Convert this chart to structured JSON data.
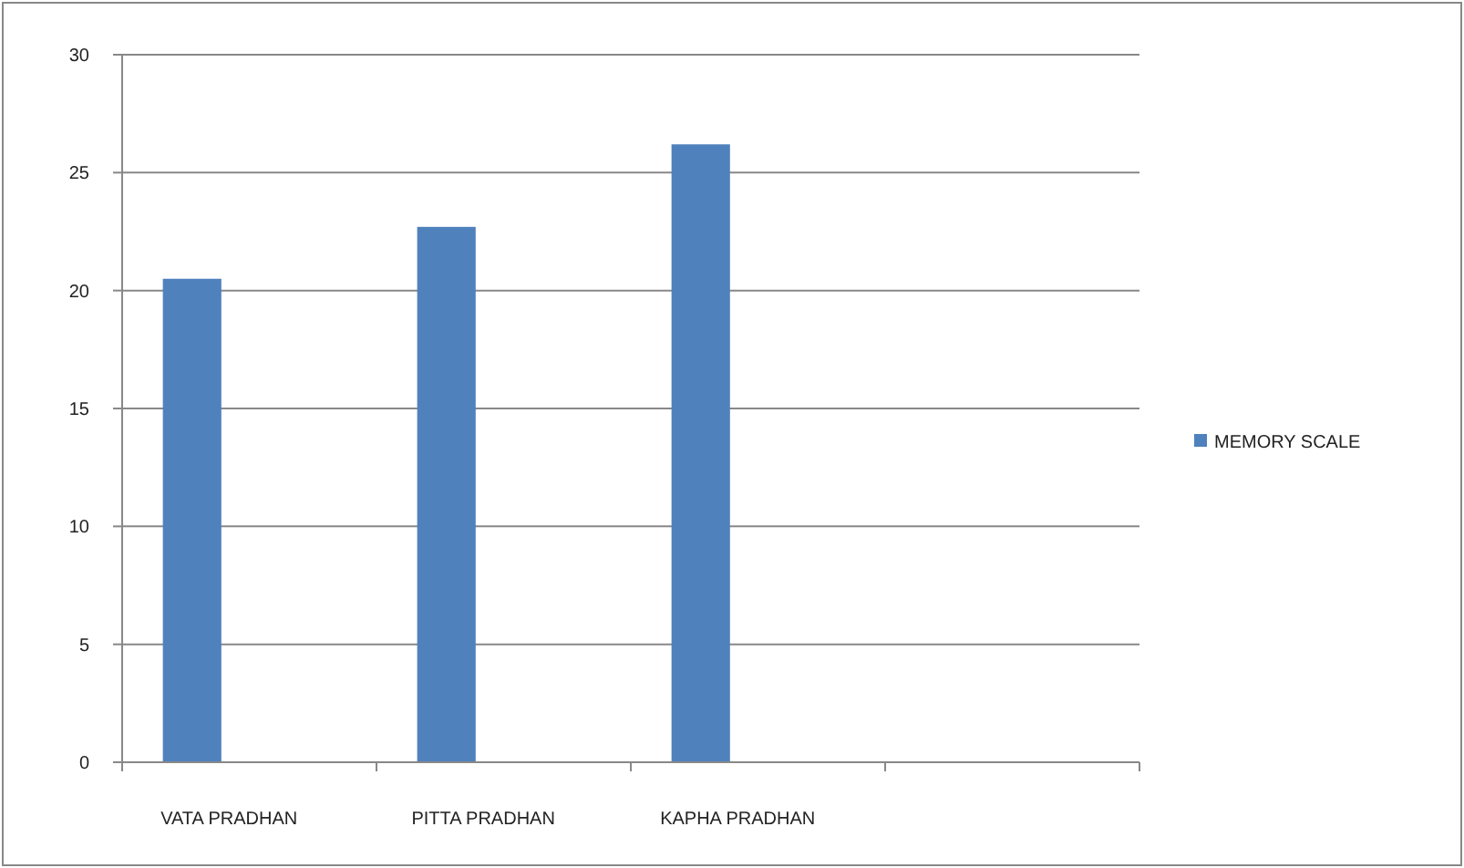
{
  "chart_data": {
    "type": "bar",
    "categories": [
      "VATA PRADHAN",
      "PITTA PRADHAN",
      "KAPHA PRADHAN",
      null
    ],
    "series": [
      {
        "name": "MEMORY SCALE",
        "color": "#4f81bd",
        "values": [
          20.5,
          22.7,
          26.2,
          null
        ]
      }
    ],
    "ylim": [
      0,
      30
    ],
    "yticks": [
      0,
      5,
      10,
      15,
      20,
      25,
      30
    ],
    "grid": "y",
    "legend": "right"
  }
}
